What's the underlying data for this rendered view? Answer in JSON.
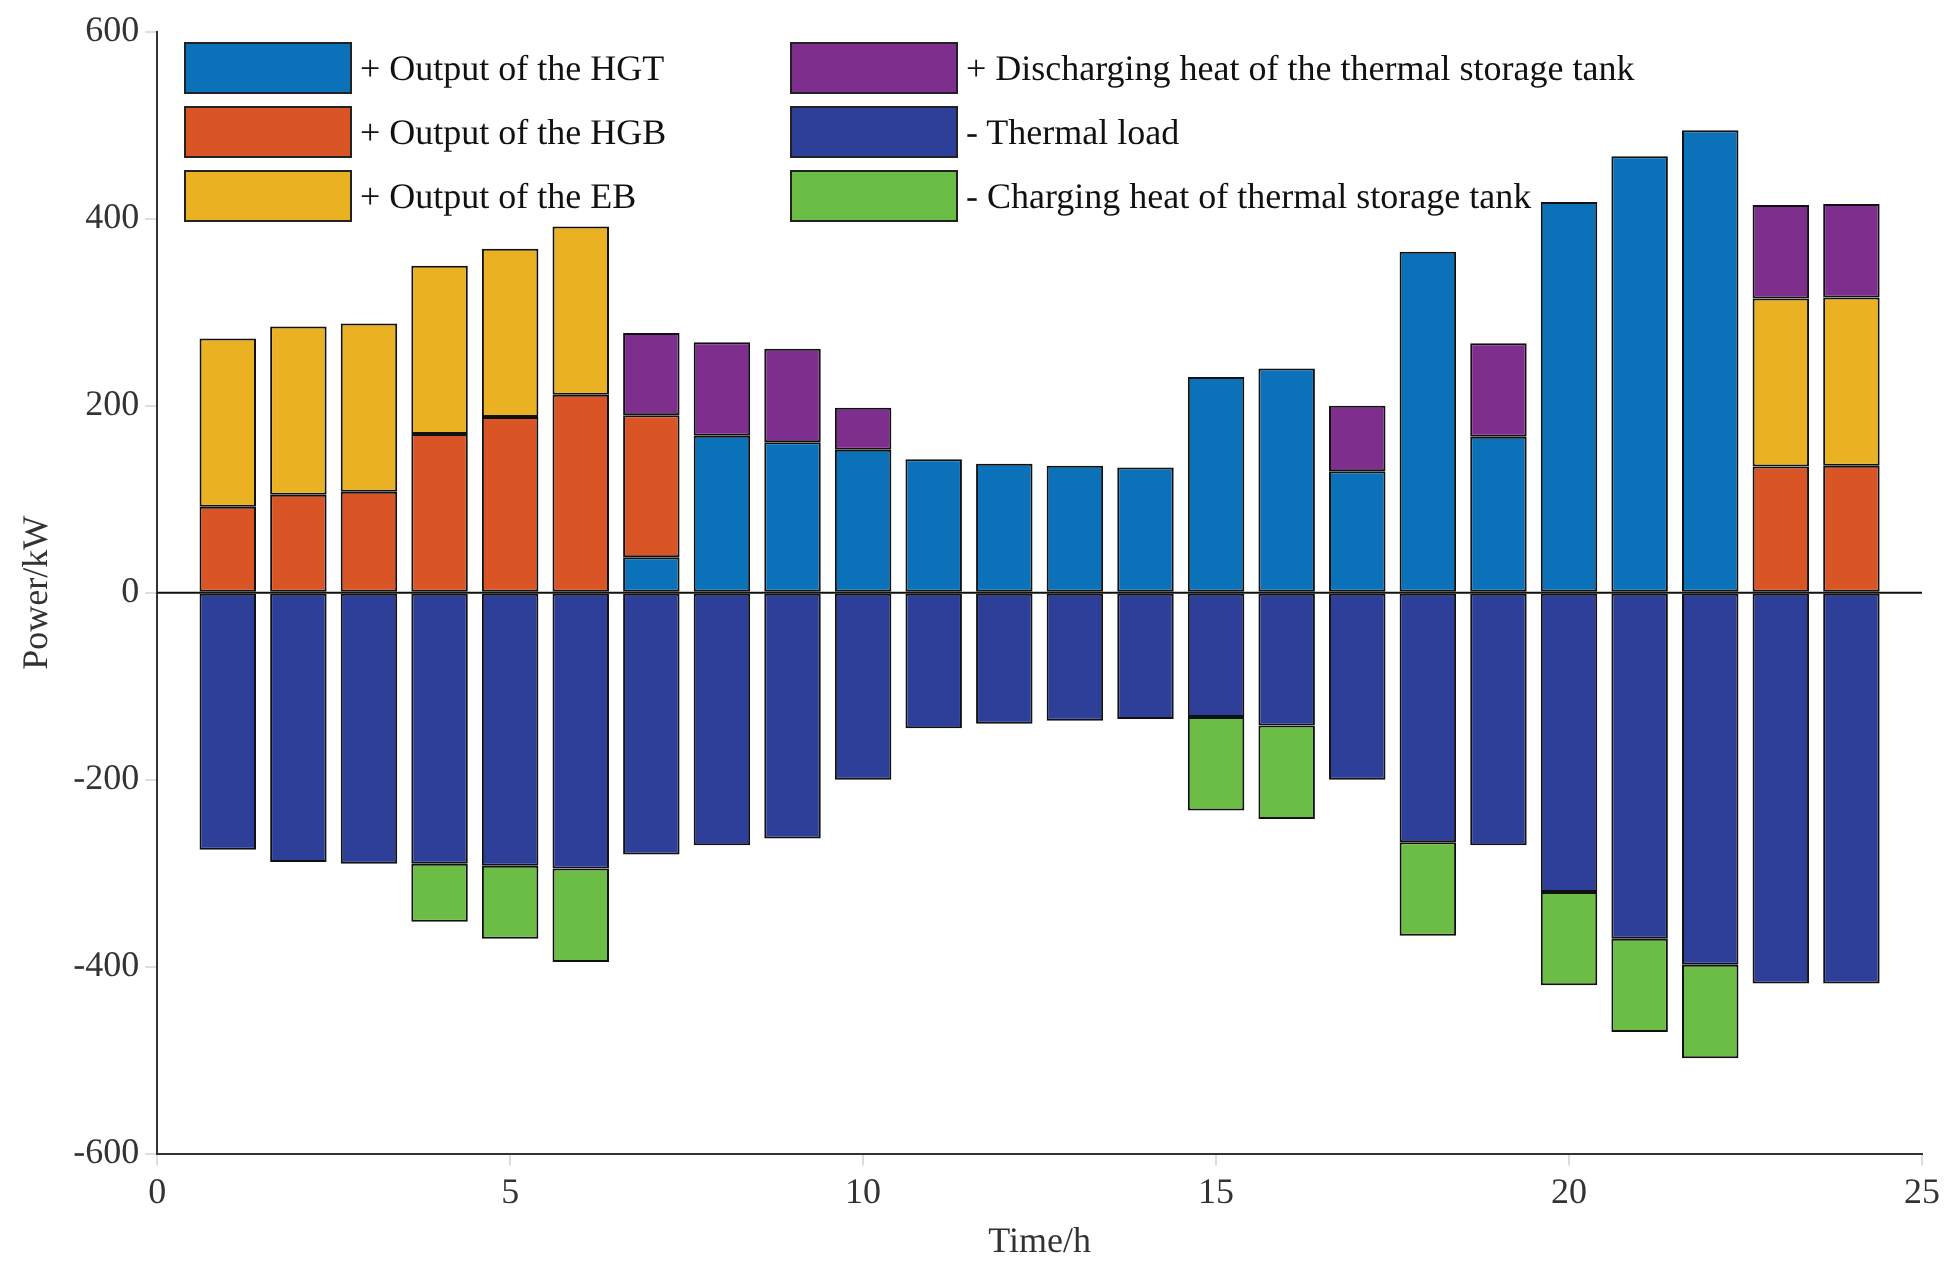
{
  "chart_data": {
    "type": "bar",
    "stacked": true,
    "xlabel": "Time/h",
    "ylabel": "Power/kW",
    "x": [
      1,
      2,
      3,
      4,
      5,
      6,
      7,
      8,
      9,
      10,
      11,
      12,
      13,
      14,
      15,
      16,
      17,
      18,
      19,
      20,
      21,
      22,
      23,
      24
    ],
    "xlim": [
      0,
      25
    ],
    "xticks": [
      0,
      5,
      10,
      15,
      20,
      25
    ],
    "ylim": [
      -600,
      600
    ],
    "yticks": [
      -600,
      -400,
      -200,
      0,
      200,
      400,
      600
    ],
    "grid": false,
    "legend": "top left",
    "ref_lines": [
      {
        "axis": "y",
        "value": 0
      }
    ],
    "series": [
      {
        "name": "+ Output of the HGT",
        "color": "#0b72b9",
        "values": [
          0,
          0,
          0,
          0,
          0,
          0,
          38,
          168,
          161,
          153,
          143,
          138,
          136,
          134,
          231,
          240,
          130,
          365,
          167,
          418,
          467,
          495,
          0,
          0
        ]
      },
      {
        "name": "+ Output of the HGB",
        "color": "#d95525",
        "values": [
          92,
          105,
          108,
          170,
          188,
          212,
          152,
          0,
          0,
          0,
          0,
          0,
          0,
          0,
          0,
          0,
          0,
          0,
          0,
          0,
          0,
          0,
          135,
          136
        ]
      },
      {
        "name": "+ Output of the EB",
        "color": "#eab223",
        "values": [
          180,
          180,
          180,
          180,
          180,
          180,
          0,
          0,
          0,
          0,
          0,
          0,
          0,
          0,
          0,
          0,
          0,
          0,
          0,
          0,
          0,
          0,
          180,
          180
        ]
      },
      {
        "name": "+ Discharging heat of the thermal storage tank",
        "color": "#7e2f8e",
        "values": [
          0,
          0,
          0,
          0,
          0,
          0,
          88,
          100,
          100,
          45,
          0,
          0,
          0,
          0,
          0,
          0,
          70,
          0,
          100,
          0,
          0,
          0,
          100,
          100
        ]
      },
      {
        "name": "- Thermal load",
        "color": "#2d3f98",
        "values": [
          -275,
          -288,
          -290,
          -290,
          -292,
          -295,
          -280,
          -270,
          -263,
          -200,
          -145,
          -140,
          -137,
          -135,
          -133,
          -142,
          -200,
          -267,
          -270,
          -320,
          -370,
          -398,
          -418,
          -418
        ]
      },
      {
        "name": "- Charging heat of thermal storage tank",
        "color": "#6bbd45",
        "values": [
          0,
          0,
          0,
          -62,
          -78,
          -100,
          0,
          0,
          0,
          0,
          0,
          0,
          0,
          0,
          -100,
          -100,
          0,
          -100,
          0,
          -100,
          -100,
          -100,
          0,
          0
        ]
      }
    ]
  }
}
